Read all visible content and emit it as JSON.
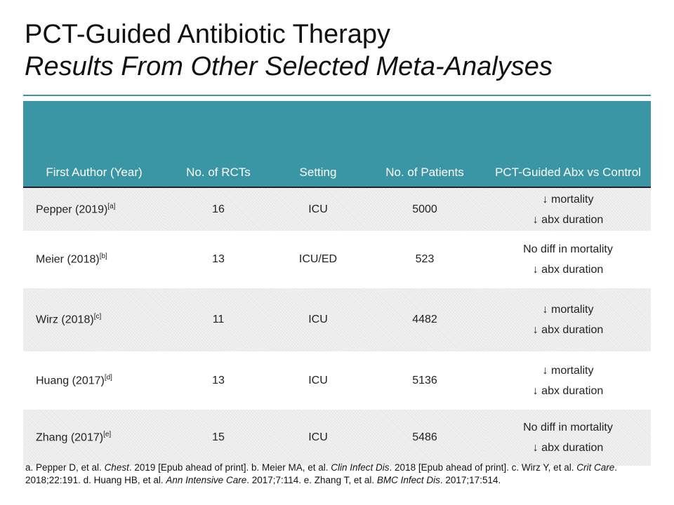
{
  "title": {
    "line1": "PCT-Guided Antibiotic Therapy",
    "line2": "Results From Other Selected Meta-Analyses"
  },
  "table": {
    "headers": [
      "First Author (Year)",
      "No. of RCTs",
      "Setting",
      "No. of Patients",
      "PCT-Guided  Abx vs Control"
    ],
    "rows": [
      {
        "author": "Pepper (2019)",
        "ref": "[a]",
        "rcts": "16",
        "setting": "ICU",
        "patients": "5000",
        "effect": [
          "↓ mortality",
          "↓ abx duration"
        ]
      },
      {
        "author": "Meier (2018)",
        "ref": "[b]",
        "rcts": "13",
        "setting": "ICU/ED",
        "patients": "523",
        "effect": [
          "No diff in mortality",
          "↓ abx duration"
        ]
      },
      {
        "author": "Wirz (2018)",
        "ref": "[c]",
        "rcts": "11",
        "setting": "ICU",
        "patients": "4482",
        "effect": [
          "↓ mortality",
          "↓ abx duration"
        ]
      },
      {
        "author": "Huang (2017)",
        "ref": "[d]",
        "rcts": "13",
        "setting": "ICU",
        "patients": "5136",
        "effect": [
          "↓ mortality",
          "↓ abx duration"
        ]
      },
      {
        "author": "Zhang (2017)",
        "ref": "[e]",
        "rcts": "15",
        "setting": "ICU",
        "patients": "5486",
        "effect": [
          "No diff in mortality",
          "↓ abx duration"
        ]
      }
    ]
  },
  "footnote": [
    {
      "t": "a. Pepper D, et al. "
    },
    {
      "t": "Chest",
      "i": true
    },
    {
      "t": ". 2019 [Epub ahead of print]. b. Meier MA, et al. "
    },
    {
      "t": "Clin Infect Dis",
      "i": true
    },
    {
      "t": ". 2018 [Epub ahead of print]. c. Wirz Y, et al. "
    },
    {
      "t": "Crit Care",
      "i": true
    },
    {
      "t": ". 2018;22:191. d. Huang HB, et al. "
    },
    {
      "t": "Ann Intensive Care",
      "i": true
    },
    {
      "t": ". 2017;7:114. e. Zhang T, et al. "
    },
    {
      "t": "BMC Infect Dis",
      "i": true
    },
    {
      "t": ". 2017;17:514."
    }
  ],
  "colors": {
    "accent": "#3a95a4"
  }
}
